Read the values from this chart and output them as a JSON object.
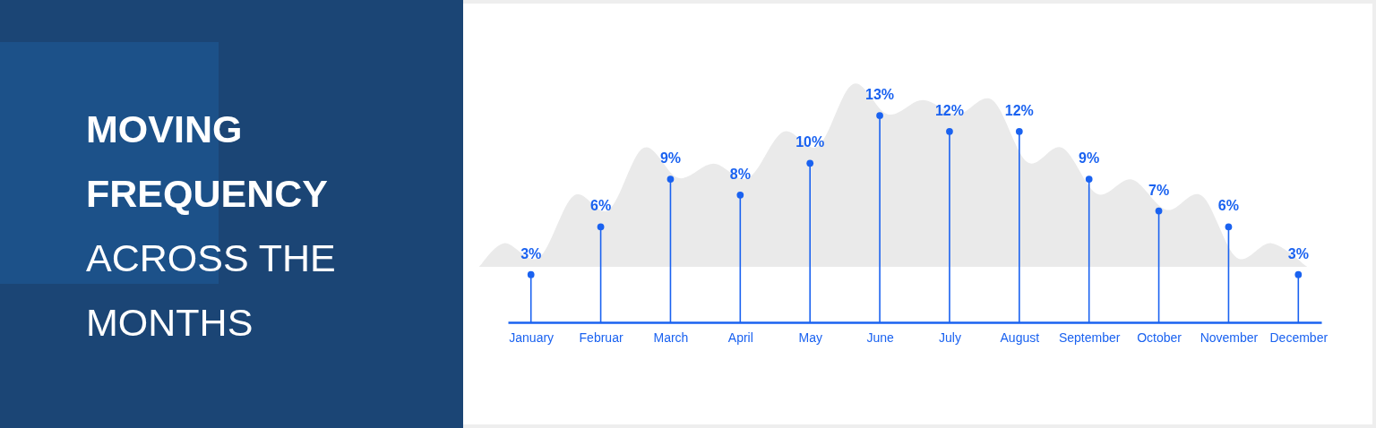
{
  "chart_data": {
    "type": "lollipop",
    "title": "MOVING FREQUENCY",
    "subtitle": "ACROSS THE MONTHS",
    "categories": [
      "January",
      "Februar",
      "March",
      "April",
      "May",
      "June",
      "July",
      "August",
      "September",
      "October",
      "November",
      "December"
    ],
    "values": [
      3,
      6,
      9,
      8,
      10,
      13,
      12,
      12,
      9,
      7,
      6,
      3
    ],
    "value_labels": [
      "3%",
      "6%",
      "9%",
      "8%",
      "10%",
      "13%",
      "12%",
      "12%",
      "9%",
      "7%",
      "6%",
      "3%"
    ],
    "color": "#1a62f0",
    "marker": "circle"
  }
}
